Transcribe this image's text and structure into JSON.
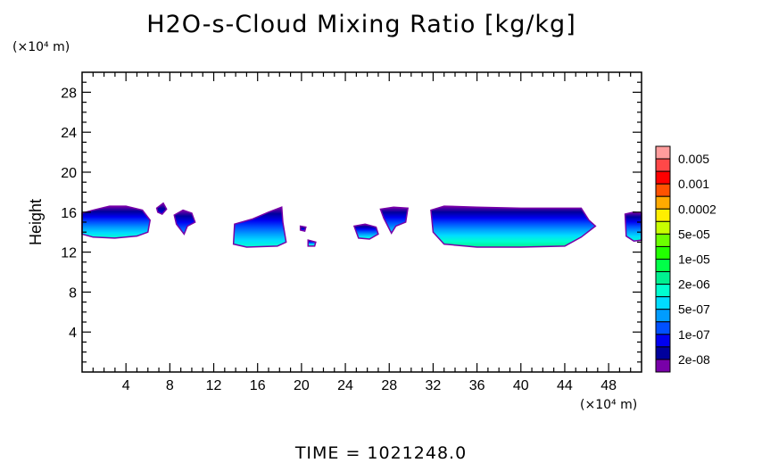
{
  "chart_data": {
    "type": "heatmap",
    "title": "H2O-s-Cloud Mixing Ratio [kg/kg]",
    "xlabel": "",
    "ylabel": "Height",
    "x_unit_label": "(×10⁴ m)",
    "y_unit_label": "(×10⁴ m)",
    "footer": "TIME = 1021248.0",
    "xlim": [
      0,
      51
    ],
    "ylim": [
      0,
      30
    ],
    "x_ticks": [
      4,
      8,
      12,
      16,
      20,
      24,
      28,
      32,
      36,
      40,
      44,
      48
    ],
    "y_ticks": [
      4,
      8,
      12,
      16,
      20,
      24,
      28
    ],
    "colorbar": {
      "labels": [
        "0.005",
        "0.001",
        "0.0002",
        "5e-05",
        "1e-05",
        "2e-06",
        "5e-07",
        "1e-07",
        "2e-08"
      ],
      "colors": [
        "#ff9c9c",
        "#ff4848",
        "#ff0000",
        "#ff5200",
        "#ffaa00",
        "#ffee00",
        "#c8ff00",
        "#6cff00",
        "#22ff00",
        "#00ff48",
        "#00f090",
        "#00ffd0",
        "#00dcff",
        "#009cff",
        "#0050ff",
        "#0000f0",
        "#00009c",
        "#7800a8"
      ]
    },
    "cloud_regions": [
      {
        "x": [
          0,
          1,
          2.5,
          4,
          5.5,
          6.2,
          6.0,
          5.0,
          3.0,
          1.0,
          0
        ],
        "y": [
          15.9,
          16.2,
          16.6,
          16.6,
          16.2,
          15.2,
          14.0,
          13.6,
          13.4,
          13.5,
          13.8
        ],
        "core": 0.6
      },
      {
        "x": [
          6.8,
          7.4,
          7.7,
          7.3,
          6.9
        ],
        "y": [
          16.4,
          16.9,
          16.3,
          15.8,
          16.0
        ],
        "core": 0.0
      },
      {
        "x": [
          8.4,
          9.2,
          10.0,
          10.3,
          9.6,
          9.3,
          8.6
        ],
        "y": [
          15.7,
          16.2,
          15.9,
          15.0,
          14.6,
          13.8,
          14.8
        ],
        "core": 0.35
      },
      {
        "x": [
          13.9,
          15.5,
          17.0,
          18.2,
          18.3,
          18.6,
          17.8,
          15.0,
          13.8
        ],
        "y": [
          14.8,
          15.3,
          16.0,
          16.5,
          15.0,
          13.0,
          12.6,
          12.5,
          12.8
        ],
        "core": 0.6
      },
      {
        "x": [
          19.9,
          20.4,
          20.3,
          19.9
        ],
        "y": [
          14.6,
          14.5,
          14.1,
          14.2
        ],
        "core": 0.1
      },
      {
        "x": [
          20.6,
          21.3,
          21.2,
          20.6
        ],
        "y": [
          13.2,
          13.0,
          12.6,
          12.6
        ],
        "core": 0.7
      },
      {
        "x": [
          24.8,
          25.8,
          26.8,
          27.0,
          26.2,
          25.2
        ],
        "y": [
          14.6,
          14.8,
          14.5,
          13.8,
          13.3,
          13.4
        ],
        "core": 0.5
      },
      {
        "x": [
          27.2,
          28.4,
          29.7,
          29.5,
          28.6,
          28.2,
          27.5
        ],
        "y": [
          16.3,
          16.5,
          16.4,
          15.0,
          14.6,
          13.9,
          15.4
        ],
        "core": 0.45
      },
      {
        "x": [
          31.8,
          33,
          36,
          40,
          43,
          45.5,
          46.2,
          46.8,
          45.5,
          44.0,
          40.0,
          36.0,
          33.0,
          32.0
        ],
        "y": [
          16.2,
          16.6,
          16.5,
          16.4,
          16.4,
          16.4,
          15.2,
          14.6,
          13.5,
          12.6,
          12.5,
          12.5,
          12.8,
          14.0
        ],
        "core": 0.75
      },
      {
        "x": [
          49.5,
          50.3,
          51,
          51,
          50.3,
          49.6
        ],
        "y": [
          15.8,
          16.0,
          15.9,
          13.2,
          13.1,
          13.6
        ],
        "core": 0.55
      }
    ]
  }
}
